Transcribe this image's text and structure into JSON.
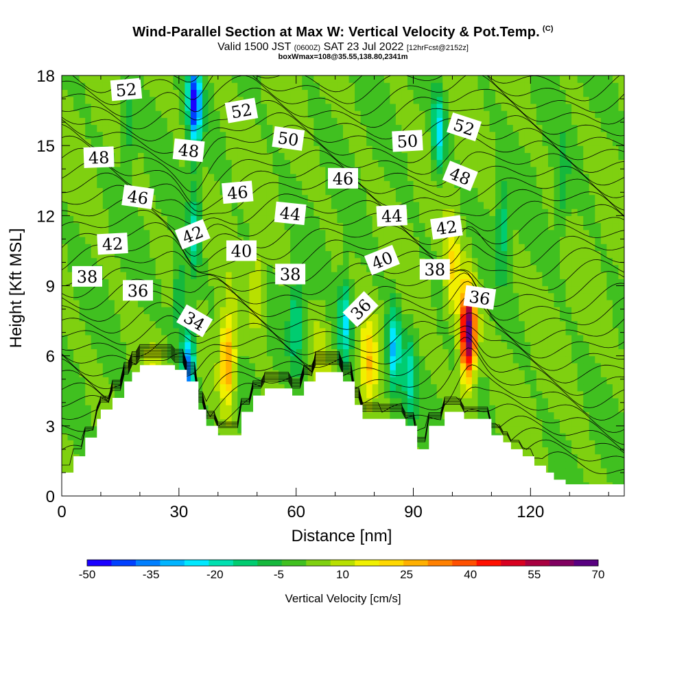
{
  "header": {
    "title": "Wind-Parallel Section at Max W: Vertical Velocity & Pot.Temp.",
    "copyright": "(C)",
    "valid_prefix": "Valid 1500 JST",
    "valid_utc": "(0600Z)",
    "valid_date": "SAT 23 Jul 2022",
    "forecast": "[12hrFcst@2152z]",
    "box_info": "boxWmax=108@35.55,138.80,2341m"
  },
  "chart_data": {
    "type": "heatmap",
    "xlabel": "Distance [nm]",
    "ylabel": "Height [Kft MSL]",
    "xlim": [
      0,
      144
    ],
    "ylim": [
      0,
      18
    ],
    "x_ticks": [
      "0",
      "30",
      "60",
      "90",
      "120"
    ],
    "y_ticks": [
      "0",
      "3",
      "6",
      "9",
      "12",
      "15",
      "18"
    ],
    "colorbar": {
      "title": "Vertical Velocity [cm/s]",
      "tick_labels": [
        "-50",
        "-35",
        "-20",
        "-5",
        "10",
        "25",
        "40",
        "55",
        "70"
      ],
      "range": [
        -50,
        70
      ],
      "colors": [
        "#1a00ff",
        "#0040ff",
        "#007fff",
        "#00b4ff",
        "#00e8ff",
        "#00e0b0",
        "#00cc70",
        "#16b83c",
        "#40c020",
        "#7fd010",
        "#b8e000",
        "#f0f000",
        "#ffd800",
        "#ffb000",
        "#ff8000",
        "#ff5000",
        "#ff1000",
        "#d80020",
        "#a80040",
        "#800060",
        "#580080"
      ]
    },
    "terrain_kft": [
      [
        0,
        1.0
      ],
      [
        3,
        1.0
      ],
      [
        3,
        1.7
      ],
      [
        6,
        1.7
      ],
      [
        6,
        2.5
      ],
      [
        9,
        2.5
      ],
      [
        9,
        3.3
      ],
      [
        10,
        3.3
      ],
      [
        10,
        3.7
      ],
      [
        13,
        3.7
      ],
      [
        13,
        4.2
      ],
      [
        16,
        4.2
      ],
      [
        16,
        4.9
      ],
      [
        18,
        4.9
      ],
      [
        18,
        5.3
      ],
      [
        20,
        5.3
      ],
      [
        20,
        5.6
      ],
      [
        29,
        5.6
      ],
      [
        29,
        5.4
      ],
      [
        32,
        5.4
      ],
      [
        32,
        4.9
      ],
      [
        35,
        4.9
      ],
      [
        35,
        3.7
      ],
      [
        37,
        3.7
      ],
      [
        37,
        3.0
      ],
      [
        40,
        3.0
      ],
      [
        40,
        2.6
      ],
      [
        46,
        2.6
      ],
      [
        46,
        3.6
      ],
      [
        49,
        3.6
      ],
      [
        49,
        4.3
      ],
      [
        52,
        4.3
      ],
      [
        52,
        4.6
      ],
      [
        59,
        4.6
      ],
      [
        59,
        4.3
      ],
      [
        62,
        4.3
      ],
      [
        62,
        4.9
      ],
      [
        65,
        4.9
      ],
      [
        65,
        5.3
      ],
      [
        72,
        5.3
      ],
      [
        72,
        4.9
      ],
      [
        75,
        4.9
      ],
      [
        75,
        3.9
      ],
      [
        77,
        3.9
      ],
      [
        77,
        3.3
      ],
      [
        88,
        3.3
      ],
      [
        88,
        3.0
      ],
      [
        91,
        3.0
      ],
      [
        91,
        2.0
      ],
      [
        94,
        2.0
      ],
      [
        94,
        3.0
      ],
      [
        98,
        3.0
      ],
      [
        98,
        3.6
      ],
      [
        103,
        3.6
      ],
      [
        103,
        3.3
      ],
      [
        110,
        3.3
      ],
      [
        110,
        2.6
      ],
      [
        113,
        2.6
      ],
      [
        113,
        2.3
      ],
      [
        115,
        2.3
      ],
      [
        115,
        2.0
      ],
      [
        118,
        2.0
      ],
      [
        118,
        1.7
      ],
      [
        121,
        1.7
      ],
      [
        121,
        1.3
      ],
      [
        124,
        1.3
      ],
      [
        124,
        1.0
      ],
      [
        126,
        1.0
      ],
      [
        126,
        0.7
      ],
      [
        129,
        0.7
      ],
      [
        129,
        0.5
      ],
      [
        144,
        0.5
      ]
    ],
    "updrafts": [
      {
        "x": 42.5,
        "y": 5.8,
        "peak": 32
      },
      {
        "x": 104,
        "y": 7.0,
        "peak": 70
      },
      {
        "x": 100,
        "y": 9.5,
        "peak": 18
      },
      {
        "x": 78.5,
        "y": 5.5,
        "peak": 20
      },
      {
        "x": 50,
        "y": 9,
        "peak": 12
      },
      {
        "x": 24,
        "y": 4.5,
        "peak": 12
      },
      {
        "x": 66,
        "y": 6.5,
        "peak": 8
      }
    ],
    "downdrafts": [
      {
        "x": 34,
        "y": 16.8,
        "peak": -45
      },
      {
        "x": 32.5,
        "y": 5.5,
        "peak": -40
      },
      {
        "x": 34,
        "y": 11.5,
        "peak": -20
      },
      {
        "x": 85,
        "y": 6.2,
        "peak": -30
      },
      {
        "x": 72.5,
        "y": 7.5,
        "peak": -25
      },
      {
        "x": 60,
        "y": 7.5,
        "peak": -18
      },
      {
        "x": 89,
        "y": 5.0,
        "peak": -20
      },
      {
        "x": 96.5,
        "y": 15.5,
        "peak": -25
      },
      {
        "x": 113,
        "y": 11.5,
        "peak": -15
      },
      {
        "x": 30,
        "y": 8.5,
        "peak": -15
      },
      {
        "x": 17,
        "y": 16,
        "peak": -12
      },
      {
        "x": 128,
        "y": 13,
        "peak": -10
      }
    ],
    "isentrope_labels": [
      {
        "text": "52",
        "x": 16.5,
        "y": 17.4,
        "rot": -5
      },
      {
        "text": "52",
        "x": 46,
        "y": 16.5,
        "rot": -10
      },
      {
        "text": "52",
        "x": 103,
        "y": 15.8,
        "rot": 18
      },
      {
        "text": "50",
        "x": 58,
        "y": 15.3,
        "rot": 8
      },
      {
        "text": "50",
        "x": 88.5,
        "y": 15.2,
        "rot": -3
      },
      {
        "text": "48",
        "x": 9.5,
        "y": 14.5,
        "rot": -2
      },
      {
        "text": "48",
        "x": 32.5,
        "y": 14.8,
        "rot": 6
      },
      {
        "text": "48",
        "x": 102,
        "y": 13.7,
        "rot": 22
      },
      {
        "text": "46",
        "x": 19.5,
        "y": 12.8,
        "rot": 8
      },
      {
        "text": "46",
        "x": 45,
        "y": 13.0,
        "rot": -5
      },
      {
        "text": "46",
        "x": 72,
        "y": 13.6,
        "rot": 0
      },
      {
        "text": "44",
        "x": 58.5,
        "y": 12.1,
        "rot": 6
      },
      {
        "text": "44",
        "x": 84.5,
        "y": 12.0,
        "rot": -3
      },
      {
        "text": "42",
        "x": 13,
        "y": 10.8,
        "rot": -3
      },
      {
        "text": "42",
        "x": 33.5,
        "y": 11.2,
        "rot": -22
      },
      {
        "text": "42",
        "x": 98.5,
        "y": 11.5,
        "rot": -8
      },
      {
        "text": "40",
        "x": 46,
        "y": 10.5,
        "rot": 0
      },
      {
        "text": "40",
        "x": 82,
        "y": 10.1,
        "rot": -22
      },
      {
        "text": "38",
        "x": 6.5,
        "y": 9.4,
        "rot": 0
      },
      {
        "text": "38",
        "x": 58.5,
        "y": 9.5,
        "rot": 0
      },
      {
        "text": "38",
        "x": 95.5,
        "y": 9.7,
        "rot": 0
      },
      {
        "text": "36",
        "x": 19.5,
        "y": 8.8,
        "rot": 0
      },
      {
        "text": "36",
        "x": 107,
        "y": 8.5,
        "rot": 8
      },
      {
        "text": "36",
        "x": 76.5,
        "y": 8.0,
        "rot": -45
      },
      {
        "text": "34",
        "x": 34,
        "y": 7.5,
        "rot": 30
      }
    ]
  }
}
